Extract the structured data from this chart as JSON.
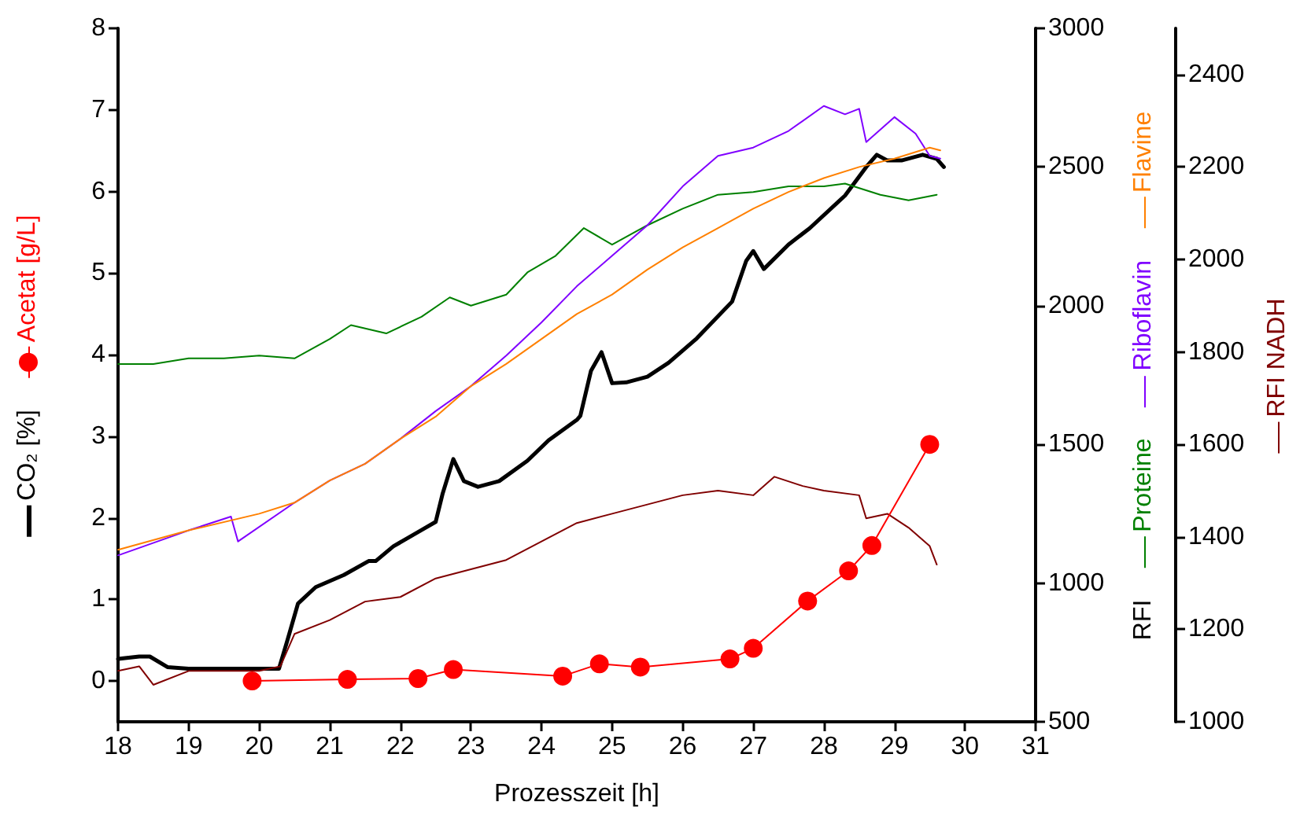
{
  "chart_data": {
    "type": "line",
    "xlabel": "Prozesszeit [h]",
    "y2label": "RFI",
    "marker": "none",
    "line_style": "solid",
    "grid": false,
    "legend": "right",
    "xlim": [
      18,
      31
    ],
    "xticks": [
      18,
      19,
      20,
      21,
      22,
      23,
      24,
      25,
      26,
      27,
      28,
      29,
      30,
      31
    ],
    "ylim": [
      -0.5,
      8
    ],
    "yticks": [
      0,
      1,
      2,
      3,
      4,
      5,
      6,
      7,
      8
    ],
    "y2lim": [
      500,
      3000
    ],
    "y2ticks": [
      500,
      1000,
      1500,
      2000,
      2500,
      3000
    ],
    "y3lim": [
      1000,
      2500
    ],
    "y3ticks": [
      1000,
      1200,
      1400,
      1600,
      1800,
      2000,
      2200,
      2400
    ],
    "series": [
      {
        "name": "CO₂ [%]",
        "color": "#000000",
        "axis": "y",
        "x": [
          18,
          18.3,
          18.45,
          18.7,
          19,
          20,
          20.28,
          20.4,
          20.55,
          20.8,
          21.2,
          21.55,
          21.65,
          21.9,
          22.3,
          22.5,
          22.6,
          22.75,
          22.9,
          23.1,
          23.4,
          23.8,
          24.1,
          24.5,
          24.55,
          24.7,
          24.85,
          25,
          25.2,
          25.5,
          25.8,
          26.2,
          26.7,
          26.9,
          27,
          27.15,
          27.5,
          27.8,
          28.3,
          28.6,
          28.75,
          28.9,
          29.1,
          29.4,
          29.6,
          29.7
        ],
        "values": [
          0.27,
          0.3,
          0.3,
          0.17,
          0.15,
          0.15,
          0.15,
          0.5,
          0.95,
          1.15,
          1.3,
          1.47,
          1.47,
          1.65,
          1.85,
          1.95,
          2.3,
          2.72,
          2.45,
          2.38,
          2.45,
          2.7,
          2.95,
          3.2,
          3.25,
          3.8,
          4.03,
          3.65,
          3.66,
          3.73,
          3.9,
          4.2,
          4.65,
          5.15,
          5.27,
          5.05,
          5.35,
          5.55,
          5.95,
          6.3,
          6.45,
          6.38,
          6.38,
          6.45,
          6.4,
          6.3
        ]
      },
      {
        "name": "Acetat [g/L]",
        "color": "#ff0000",
        "axis": "y",
        "marker": "circle",
        "x": [
          19.9,
          21.25,
          22.25,
          22.75,
          24.3,
          24.82,
          25.4,
          26.67,
          27,
          27.77,
          28.35,
          28.68,
          29.5
        ],
        "values": [
          0,
          0.02,
          0.03,
          0.14,
          0.06,
          0.21,
          0.17,
          0.27,
          0.4,
          0.98,
          1.35,
          1.66,
          2.9
        ]
      },
      {
        "name": "Proteine",
        "color": "#008000",
        "axis": "y2",
        "x": [
          18,
          18.5,
          19,
          19.5,
          20,
          20.5,
          21,
          21.3,
          21.8,
          22.3,
          22.7,
          23,
          23.5,
          23.8,
          24.2,
          24.6,
          25,
          25.5,
          26,
          26.5,
          27,
          27.5,
          28,
          28.3,
          28.8,
          29.2,
          29.6
        ],
        "values": [
          1790,
          1790,
          1810,
          1810,
          1820,
          1810,
          1880,
          1930,
          1900,
          1960,
          2030,
          2000,
          2040,
          2120,
          2180,
          2280,
          2220,
          2290,
          2350,
          2400,
          2410,
          2430,
          2430,
          2440,
          2400,
          2380,
          2400
        ]
      },
      {
        "name": "Riboflavin",
        "color": "#8000ff",
        "axis": "y2",
        "x": [
          18,
          19,
          19.6,
          19.7,
          20.5,
          21,
          21.5,
          22,
          22.5,
          23,
          23.5,
          24,
          24.5,
          25,
          25.5,
          26,
          26.5,
          27,
          27.5,
          28,
          28.3,
          28.5,
          28.6,
          29,
          29.3,
          29.5,
          29.65
        ],
        "values": [
          1100,
          1190,
          1240,
          1150,
          1290,
          1370,
          1430,
          1520,
          1620,
          1710,
          1820,
          1940,
          2070,
          2180,
          2290,
          2430,
          2540,
          2570,
          2630,
          2720,
          2690,
          2710,
          2590,
          2680,
          2620,
          2540,
          2530
        ]
      },
      {
        "name": "Flavine",
        "color": "#ff8000",
        "axis": "y2",
        "x": [
          18,
          19,
          20,
          20.5,
          21,
          21.5,
          22,
          22.5,
          23,
          23.5,
          24,
          24.5,
          25,
          25.5,
          26,
          26.5,
          27,
          27.5,
          28,
          28.5,
          29,
          29.5,
          29.65
        ],
        "values": [
          1120,
          1190,
          1250,
          1290,
          1370,
          1430,
          1520,
          1600,
          1710,
          1790,
          1880,
          1970,
          2040,
          2130,
          2210,
          2280,
          2350,
          2410,
          2460,
          2500,
          2530,
          2570,
          2560
        ]
      },
      {
        "name": "RFI NADH",
        "color": "#800000",
        "axis": "y3",
        "x": [
          18,
          18.3,
          18.5,
          19,
          20,
          20.3,
          20.5,
          21,
          21.5,
          22,
          22.5,
          23,
          23.5,
          24,
          24.5,
          25,
          25.5,
          26,
          26.5,
          27,
          27.3,
          27.7,
          28,
          28.5,
          28.6,
          28.9,
          29.2,
          29.5,
          29.6
        ],
        "values": [
          1110,
          1120,
          1080,
          1110,
          1110,
          1120,
          1190,
          1220,
          1260,
          1270,
          1310,
          1330,
          1350,
          1390,
          1430,
          1450,
          1470,
          1490,
          1500,
          1490,
          1530,
          1510,
          1500,
          1490,
          1440,
          1450,
          1420,
          1380,
          1340
        ]
      }
    ]
  }
}
